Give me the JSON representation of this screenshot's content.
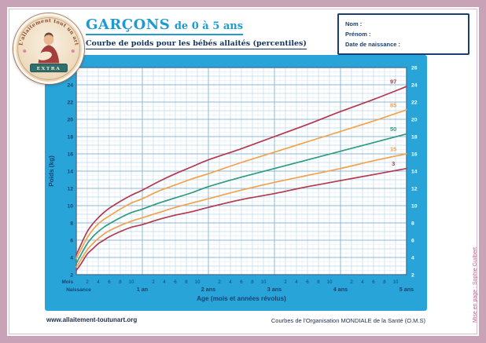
{
  "page": {
    "title_main": "GARÇONS",
    "title_rest": "de 0 à 5 ans",
    "subtitle": "Courbe de poids pour les bébés allaités (percentiles)",
    "footer_left": "www.allaitement-toutunart.org",
    "footer_right": "Courbes de l'Organisation MONDIALE de la Santé (O.M.S)",
    "credit_vertical": "Mise en page : Sophie Guilbert"
  },
  "logo": {
    "arc_text": "L'allaitement tout un art",
    "banner_text": "EXTRA"
  },
  "info_box": {
    "fields": [
      "Nom :",
      "Prénom :",
      "Date de naissance :"
    ]
  },
  "chart_data": {
    "type": "line",
    "title": "Courbe de poids pour les bébés allaités (percentiles) — Garçons de 0 à 5 ans",
    "xlabel": "Age (mois et années révolus)",
    "ylabel": "Poids (kg)",
    "xlim_months": [
      0,
      60
    ],
    "ylim": [
      2,
      26
    ],
    "ytick_step": 2,
    "grid": "on",
    "x_axis": {
      "mois_label": "Mois",
      "birth_label": "Naissance",
      "year_labels": [
        "1 an",
        "2 ans",
        "3 ans",
        "4 ans",
        "5 ans"
      ],
      "minor_tick_labels": [
        2,
        4,
        6,
        8,
        10
      ]
    },
    "x_months": [
      0,
      1,
      2,
      3,
      4,
      5,
      6,
      8,
      10,
      12,
      15,
      18,
      21,
      24,
      30,
      36,
      42,
      48,
      54,
      60
    ],
    "series": [
      {
        "name": "P97",
        "label": "97",
        "color": "#b23a4e",
        "values": [
          4.3,
          5.7,
          7.0,
          7.9,
          8.6,
          9.2,
          9.7,
          10.5,
          11.2,
          11.8,
          12.8,
          13.7,
          14.5,
          15.3,
          16.6,
          18.0,
          19.4,
          20.9,
          22.3,
          23.8
        ]
      },
      {
        "name": "P85",
        "label": "85",
        "color": "#f2a24d",
        "values": [
          3.9,
          5.1,
          6.3,
          7.2,
          7.9,
          8.4,
          8.8,
          9.6,
          10.3,
          10.8,
          11.7,
          12.4,
          13.1,
          13.7,
          15.0,
          16.2,
          17.4,
          18.6,
          19.8,
          21.1
        ]
      },
      {
        "name": "P50",
        "label": "50",
        "color": "#2f9b7f",
        "values": [
          3.3,
          4.5,
          5.6,
          6.4,
          7.0,
          7.5,
          7.9,
          8.6,
          9.2,
          9.6,
          10.3,
          10.9,
          11.5,
          12.2,
          13.3,
          14.3,
          15.3,
          16.3,
          17.3,
          18.3
        ]
      },
      {
        "name": "P15",
        "label": "15",
        "color": "#f2a24d",
        "values": [
          2.9,
          3.9,
          4.9,
          5.6,
          6.2,
          6.7,
          7.1,
          7.7,
          8.2,
          8.6,
          9.2,
          9.8,
          10.3,
          10.8,
          11.8,
          12.7,
          13.5,
          14.3,
          15.2,
          16.0
        ]
      },
      {
        "name": "P3",
        "label": "3",
        "color": "#b23a4e",
        "values": [
          2.5,
          3.4,
          4.4,
          5.0,
          5.6,
          6.0,
          6.4,
          7.0,
          7.5,
          7.8,
          8.4,
          8.9,
          9.3,
          9.8,
          10.7,
          11.4,
          12.2,
          12.9,
          13.6,
          14.3
        ]
      }
    ],
    "colors": {
      "panel_blue": "#29a4d9",
      "axis_navy": "#16436f",
      "frame_pink": "#c8a2b6"
    }
  }
}
